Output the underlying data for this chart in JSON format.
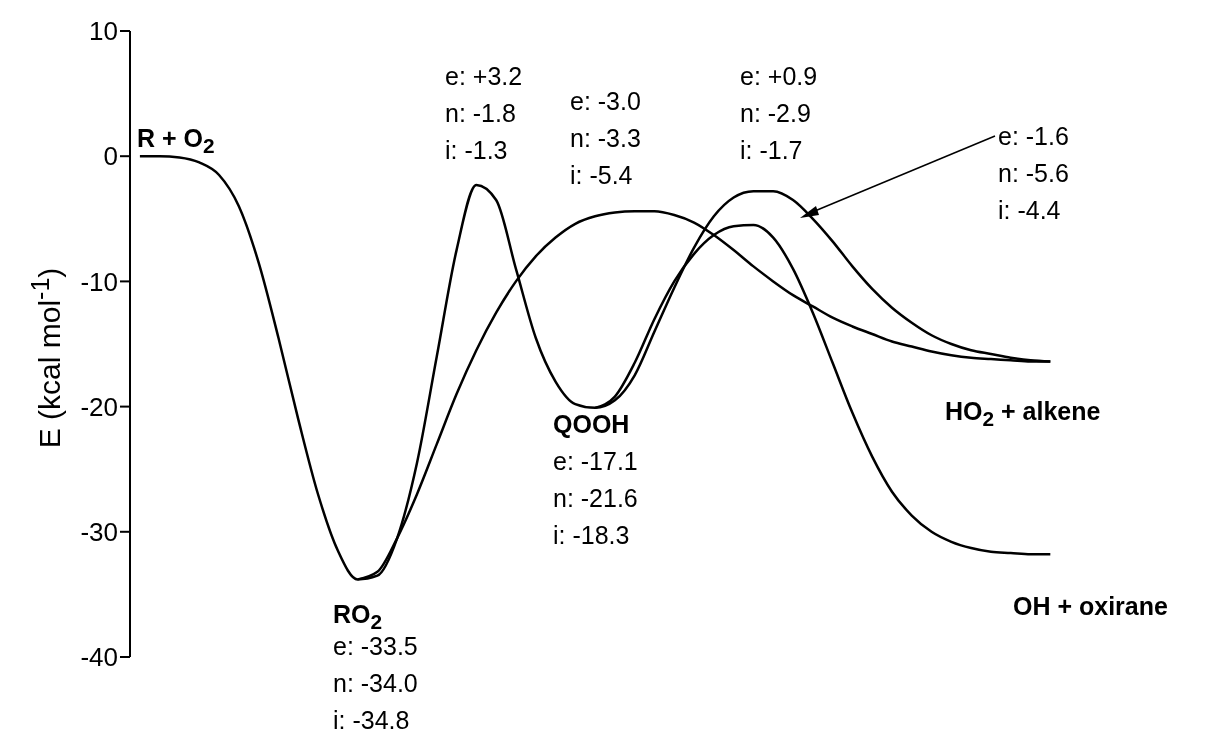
{
  "chart_data": {
    "type": "line",
    "ylabel": "E (kcal mol$^{-1}$)",
    "categories": [
      null,
      null,
      null,
      null,
      null,
      null,
      null,
      null,
      null,
      null,
      null,
      null,
      null,
      null,
      null,
      null,
      null,
      null,
      null,
      null,
      null,
      null,
      null,
      null,
      null,
      null,
      null,
      null,
      null,
      null,
      null,
      null,
      null,
      null,
      null,
      null,
      null,
      null,
      null,
      null,
      null,
      null,
      null,
      null,
      null,
      null,
      null
    ],
    "series": [
      {
        "color": "#000000",
        "values": [
          0,
          0,
          -0.1,
          -0.5,
          -1.5,
          -4,
          -8.5,
          -14.5,
          -21,
          -27,
          -31.5,
          -33.8,
          -33.5,
          -30.5,
          -24.5,
          -16,
          -7.5,
          -2.3,
          -3.5,
          -9,
          -14.5,
          -18,
          -19.8,
          -20.1,
          -19.5,
          -17.5,
          -14,
          -10.5,
          -7.3,
          -4.8,
          -3.3,
          -2.8,
          -2.8,
          -3.5,
          -5,
          -6.8,
          -8.8,
          -10.6,
          -12.1,
          -13.3,
          -14.3,
          -15,
          -15.5,
          -15.8,
          -16.1,
          -16.3,
          -16.4
        ]
      },
      {
        "color": "#000000",
        "values": [
          null,
          null,
          null,
          null,
          null,
          null,
          null,
          null,
          null,
          null,
          null,
          null,
          null,
          null,
          null,
          null,
          null,
          null,
          null,
          null,
          null,
          null,
          null,
          -20.1,
          -19.2,
          -16.5,
          -13,
          -10,
          -7.8,
          -6.3,
          -5.6,
          -5.5,
          -6.5,
          -9,
          -12.5,
          -16.5,
          -20.5,
          -24,
          -26.8,
          -28.7,
          -30,
          -30.8,
          -31.3,
          -31.6,
          -31.7,
          -31.8,
          -31.8
        ]
      },
      {
        "color": "#000000",
        "values": [
          null,
          null,
          null,
          null,
          null,
          null,
          null,
          null,
          null,
          null,
          null,
          -33.8,
          -33.2,
          -30.5,
          -27,
          -23,
          -19,
          -15.5,
          -12.5,
          -10,
          -8,
          -6.5,
          -5.4,
          -4.8,
          -4.5,
          -4.4,
          -4.4,
          -4.7,
          -5.3,
          -6.3,
          -7.5,
          -8.8,
          -10,
          -11.1,
          -12,
          -12.9,
          -13.6,
          -14.2,
          -14.8,
          -15.2,
          -15.6,
          -15.9,
          -16.1,
          -16.2,
          -16.3,
          -16.4,
          -16.4
        ]
      }
    ],
    "ylim": [
      -40,
      10
    ],
    "yticks": [
      -40,
      -30,
      -20,
      -10,
      0,
      10
    ],
    "grid": false,
    "marker": "none",
    "line_style": "solid",
    "tick_labels": "y",
    "annotations": [
      "R + O$_{2}$",
      "e: +3.2\nn: -1.8\ni: -1.3",
      "e: -3.0\nn: -3.3\ni: -5.4",
      "e: +0.9\nn: -2.9\ni: -1.7",
      "e: -1.6\nn: -5.6\ni: -4.4",
      "QOOH",
      "e: -17.1\nn: -21.6\ni: -18.3",
      "RO$_{2}$",
      "e: -33.5\nn: -34.0\ni: -34.8",
      "HO$_{2}$ + alkene",
      "OH + oxirane"
    ]
  }
}
